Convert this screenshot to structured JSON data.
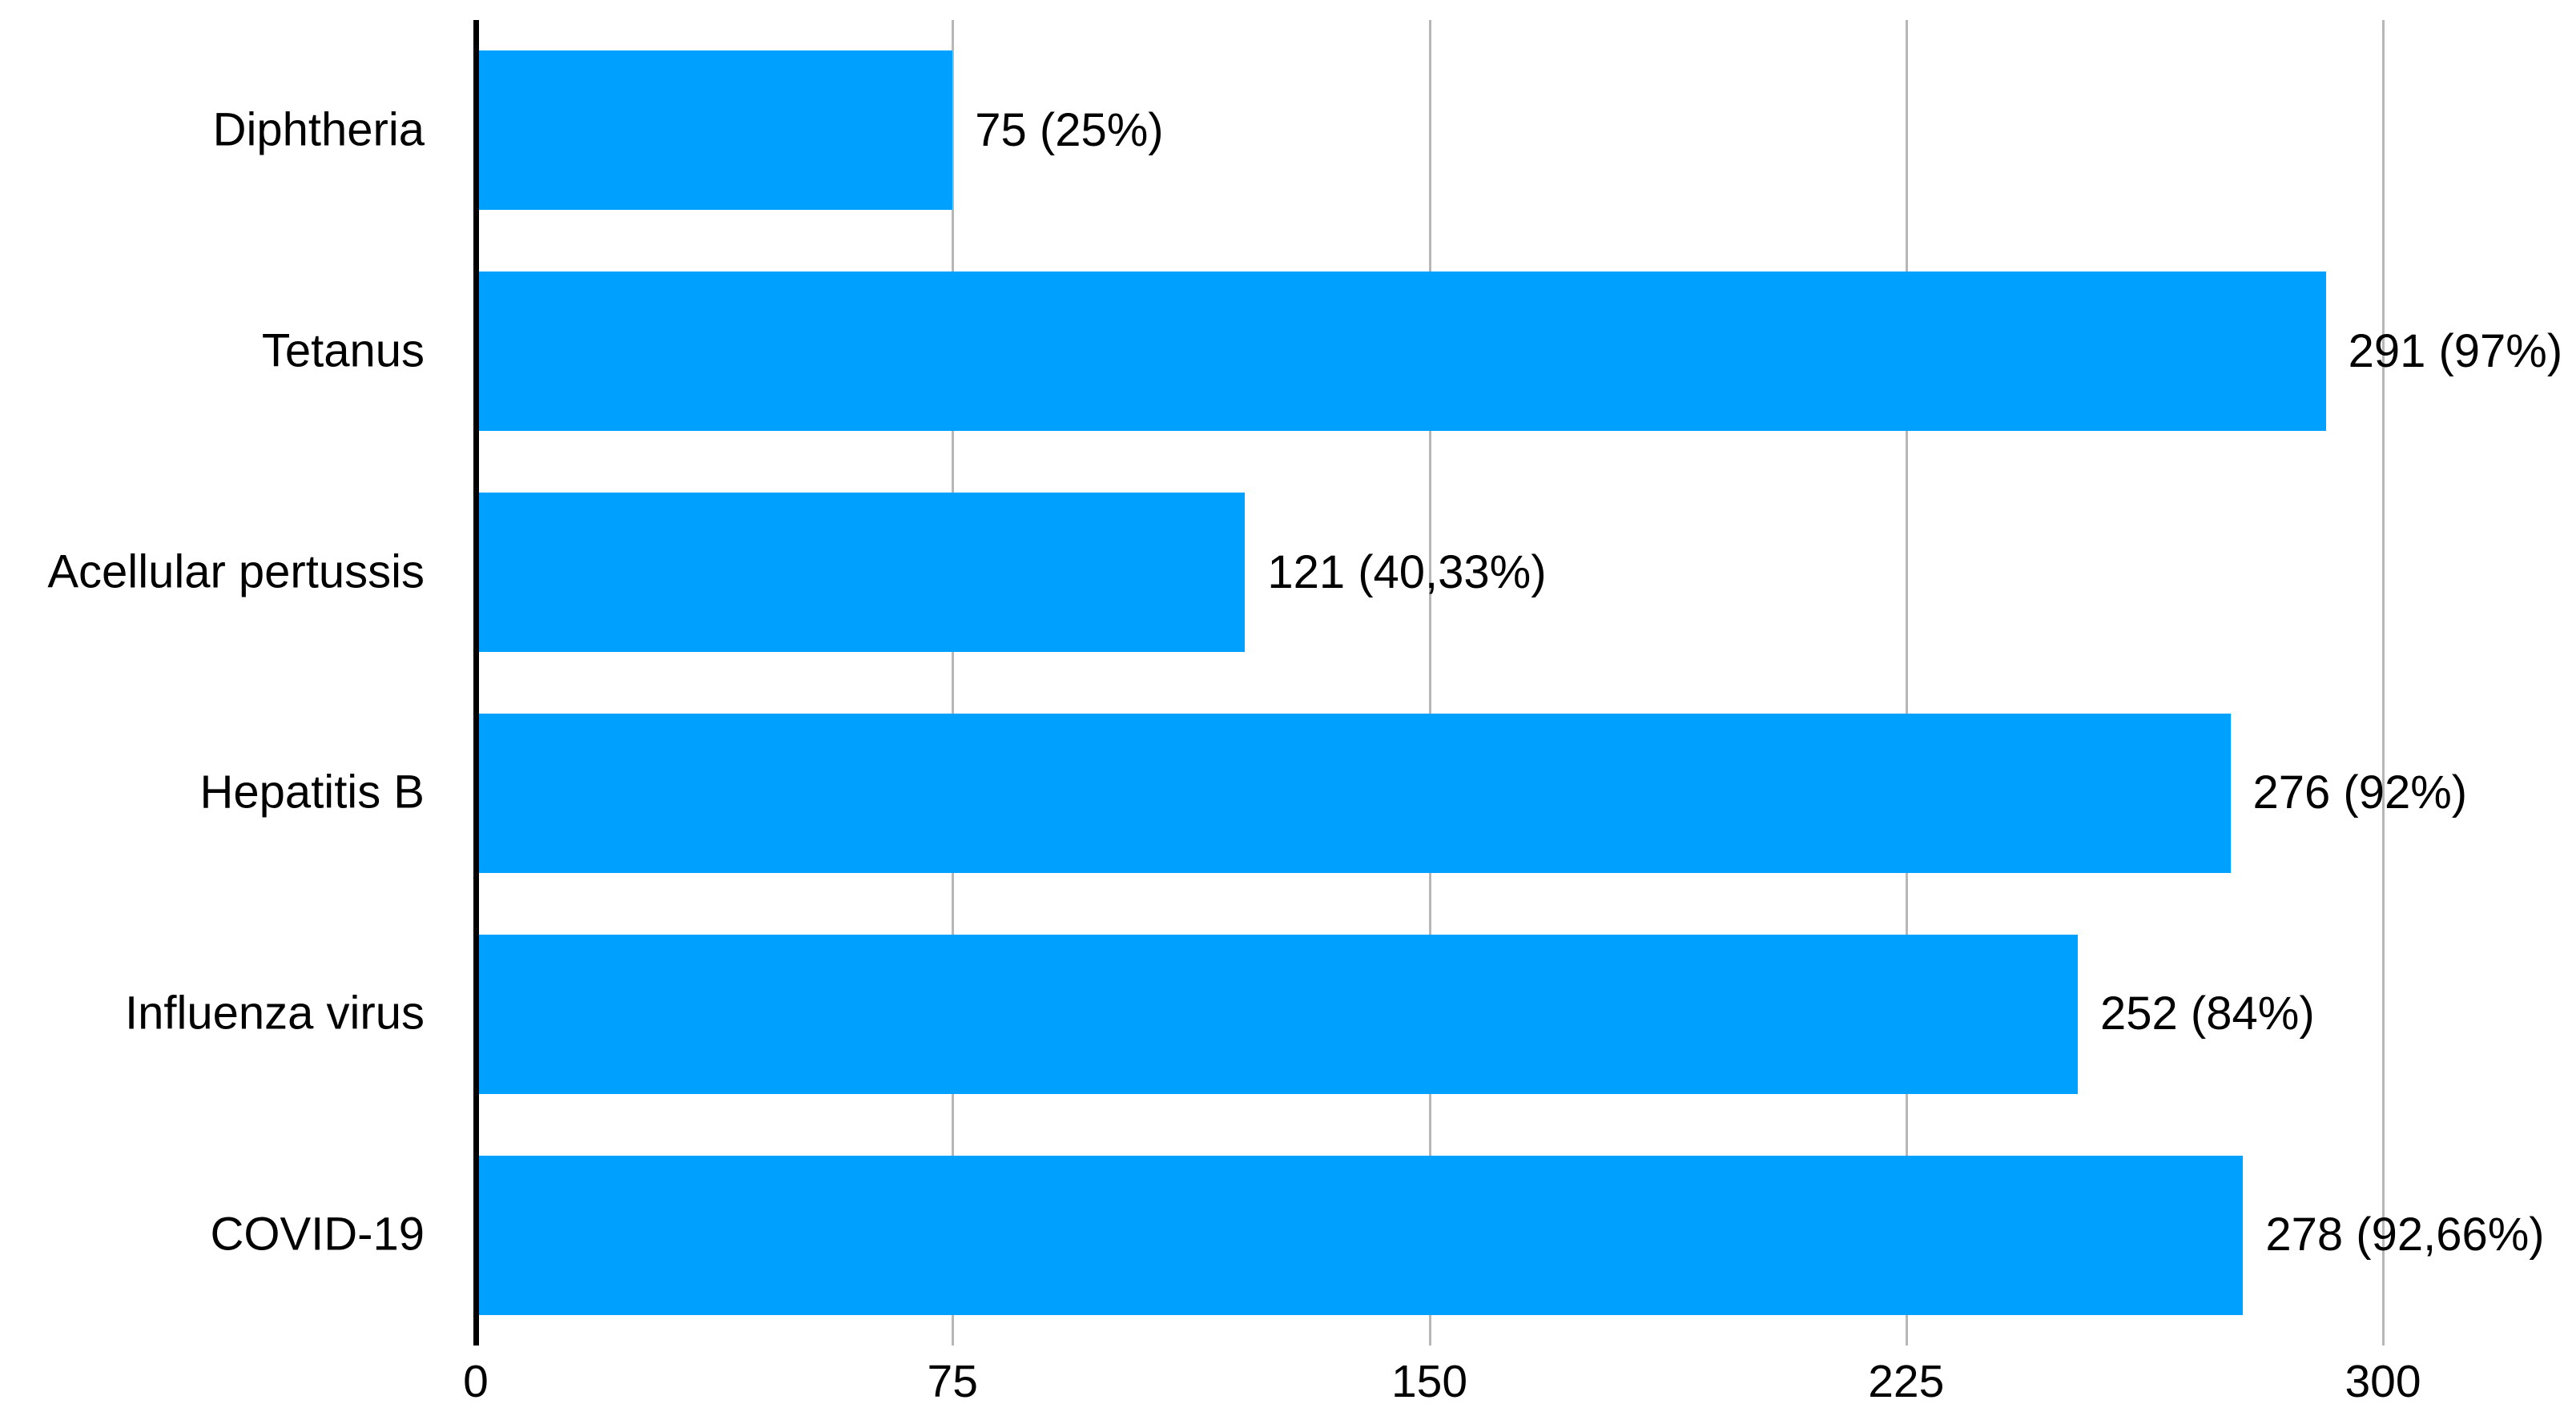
{
  "chart_data": {
    "type": "bar",
    "orientation": "horizontal",
    "title": "",
    "xlabel": "",
    "ylabel": "",
    "categories": [
      "Diphtheria",
      "Tetanus",
      "Acellular pertussis",
      "Hepatitis B",
      "Influenza virus",
      "COVID-19"
    ],
    "values": [
      75,
      291,
      121,
      276,
      252,
      278
    ],
    "percent_values": [
      25,
      97,
      40.33,
      92,
      84,
      92.66
    ],
    "bar_labels": [
      "75 (25%)",
      "291 (97%)",
      "121 (40,33%)",
      "276 (92%)",
      "252 (84%)",
      "278 (92,66%)"
    ],
    "x_tick_values": [
      0,
      75,
      150,
      225,
      300
    ],
    "x_tick_labels": [
      "0",
      "75",
      "150",
      "225",
      "300"
    ],
    "xlim": [
      0,
      300
    ],
    "grid": "vertical-gridlines-on",
    "legend_position": "none",
    "bar_color": "#00A0FF",
    "grid_color": "#b7b7b7",
    "axis_color": "#000000",
    "text_color": "#000000",
    "background_color": "#ffffff"
  }
}
